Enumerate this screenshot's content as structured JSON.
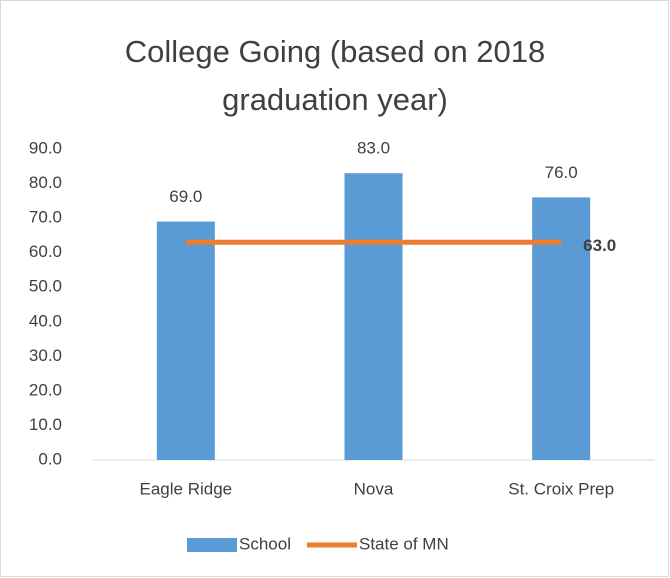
{
  "chart_data": {
    "type": "bar",
    "title": "College Going (based on 2018 graduation year)",
    "categories": [
      "Eagle Ridge",
      "Nova",
      "St. Croix Prep"
    ],
    "series": [
      {
        "name": "School",
        "type": "bar",
        "color": "#5b9bd5",
        "values": [
          69,
          83,
          76
        ],
        "value_labels": [
          "69.0",
          "83.0",
          "76.0"
        ]
      },
      {
        "name": "State of MN",
        "type": "line",
        "color": "#ed7d31",
        "values": [
          63,
          63,
          63
        ],
        "value_labels": [
          null,
          null,
          "63.0"
        ]
      }
    ],
    "ylim": [
      0,
      90
    ],
    "yticks": [
      {
        "value": 0,
        "label": "0.0"
      },
      {
        "value": 10,
        "label": "10.0"
      },
      {
        "value": 20,
        "label": "20.0"
      },
      {
        "value": 30,
        "label": "30.0"
      },
      {
        "value": 40,
        "label": "40.0"
      },
      {
        "value": 50,
        "label": "50.0"
      },
      {
        "value": 60,
        "label": "60.0"
      },
      {
        "value": 70,
        "label": "70.0"
      },
      {
        "value": 80,
        "label": "80.0"
      },
      {
        "value": 90,
        "label": "90.0"
      }
    ],
    "grid": false,
    "legend": "bottom"
  }
}
